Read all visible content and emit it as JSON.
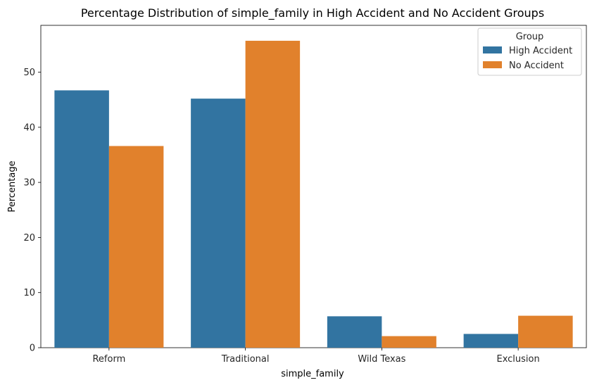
{
  "chart_data": {
    "type": "bar",
    "title": "Percentage Distribution of simple_family in High Accident and No Accident Groups",
    "xlabel": "simple_family",
    "ylabel": "Percentage",
    "categories": [
      "Reform",
      "Traditional",
      "Wild Texas",
      "Exclusion"
    ],
    "series": [
      {
        "name": "High Accident",
        "color": "#3274a1",
        "values": [
          46.7,
          45.2,
          5.7,
          2.5
        ]
      },
      {
        "name": "No Accident",
        "color": "#e1812c",
        "values": [
          36.6,
          55.7,
          2.1,
          5.8
        ]
      }
    ],
    "ylim": [
      0,
      58.5
    ],
    "yticks": [
      0,
      10,
      20,
      30,
      40,
      50
    ],
    "grid": false,
    "legend": {
      "title": "Group",
      "position": "top-right"
    }
  }
}
